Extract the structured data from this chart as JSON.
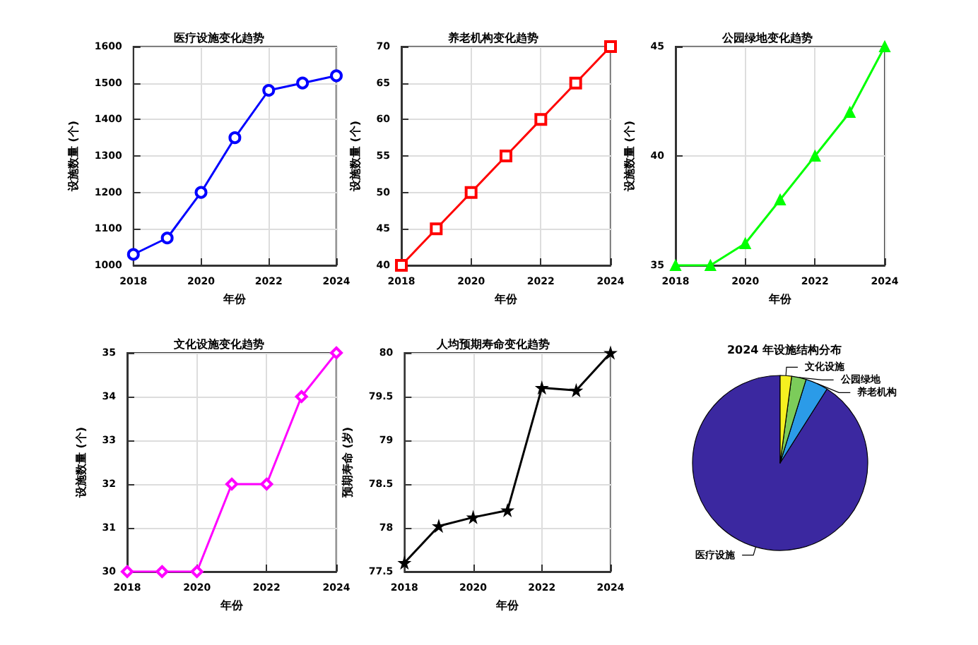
{
  "chart_data": [
    {
      "type": "line",
      "title": "医疗设施变化趋势",
      "xlabel": "年份",
      "ylabel": "设施数量 (个)",
      "x": [
        2018,
        2019,
        2020,
        2021,
        2022,
        2023,
        2024
      ],
      "marker": "circle",
      "xlim": [
        2018,
        2024
      ],
      "xticks": [
        2018,
        2020,
        2022,
        2024
      ],
      "ylim": [
        1000,
        1600
      ],
      "yticks": [
        1000,
        1100,
        1200,
        1300,
        1400,
        1500,
        1600
      ],
      "grid": true,
      "series": [
        {
          "color": "#0000ff",
          "values": [
            1030,
            1075,
            1200,
            1350,
            1480,
            1500,
            1520
          ]
        }
      ]
    },
    {
      "type": "line",
      "title": "养老机构变化趋势",
      "xlabel": "年份",
      "ylabel": "设施数量 (个)",
      "x": [
        2018,
        2019,
        2020,
        2021,
        2022,
        2023,
        2024
      ],
      "marker": "square",
      "xlim": [
        2018,
        2024
      ],
      "xticks": [
        2018,
        2020,
        2022,
        2024
      ],
      "ylim": [
        40,
        70
      ],
      "yticks": [
        40,
        45,
        50,
        55,
        60,
        65,
        70
      ],
      "grid": true,
      "series": [
        {
          "color": "#ff0000",
          "values": [
            40,
            45,
            50,
            55,
            60,
            65,
            70
          ]
        }
      ]
    },
    {
      "type": "line",
      "title": "公园绿地变化趋势",
      "xlabel": "年份",
      "ylabel": "设施数量 (个)",
      "x": [
        2018,
        2019,
        2020,
        2021,
        2022,
        2023,
        2024
      ],
      "marker": "triangle",
      "xlim": [
        2018,
        2024
      ],
      "xticks": [
        2018,
        2020,
        2022,
        2024
      ],
      "ylim": [
        35,
        45
      ],
      "yticks": [
        35,
        40,
        45
      ],
      "grid": true,
      "series": [
        {
          "color": "#00ff00",
          "values": [
            35,
            35,
            36,
            38,
            40,
            42,
            45
          ]
        }
      ]
    },
    {
      "type": "line",
      "title": "文化设施变化趋势",
      "xlabel": "年份",
      "ylabel": "设施数量 (个)",
      "x": [
        2018,
        2019,
        2020,
        2021,
        2022,
        2023,
        2024
      ],
      "marker": "diamond",
      "xlim": [
        2018,
        2024
      ],
      "xticks": [
        2018,
        2020,
        2022,
        2024
      ],
      "ylim": [
        30,
        35
      ],
      "yticks": [
        30,
        31,
        32,
        33,
        34,
        35
      ],
      "grid": true,
      "series": [
        {
          "color": "#ff00ff",
          "values": [
            30,
            30,
            30,
            32,
            32,
            34,
            35
          ]
        }
      ]
    },
    {
      "type": "line",
      "title": "人均预期寿命变化趋势",
      "xlabel": "年份",
      "ylabel": "预期寿命 (岁)",
      "x": [
        2018,
        2019,
        2020,
        2021,
        2022,
        2023,
        2024
      ],
      "marker": "star",
      "xlim": [
        2018,
        2024
      ],
      "xticks": [
        2018,
        2020,
        2022,
        2024
      ],
      "ylim": [
        77.5,
        80
      ],
      "yticks": [
        77.5,
        78,
        78.5,
        79,
        79.5,
        80
      ],
      "grid": true,
      "series": [
        {
          "color": "#000000",
          "values": [
            77.6,
            78.02,
            78.12,
            78.2,
            79.6,
            79.57,
            80
          ]
        }
      ]
    },
    {
      "type": "pie",
      "title": "2024 年设施结构分布",
      "categories": [
        "医疗设施",
        "养老机构",
        "公园绿地",
        "文化设施"
      ],
      "values": [
        91.02,
        4.19,
        2.69,
        2.1
      ],
      "colors": [
        "#3b28a0",
        "#2b9be8",
        "#7ccc5a",
        "#f5f020"
      ]
    }
  ]
}
